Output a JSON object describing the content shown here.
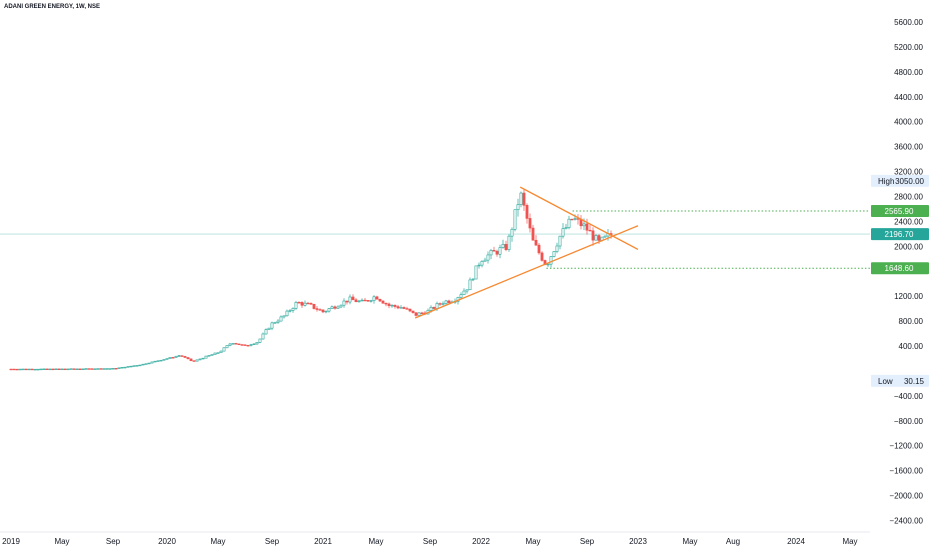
{
  "title": "ADANI GREEN ENERGY, 1W, NSE",
  "colors": {
    "up": "#26a69a",
    "down": "#ef5350",
    "trendline": "#f7882f",
    "level": "#4caf50",
    "price_tag": "#26a69a",
    "level_tag": "#4caf50",
    "hl_bg": "#e3effd"
  },
  "y_ticks": [
    "5600.00",
    "5200.00",
    "4800.00",
    "4400.00",
    "4000.00",
    "3600.00",
    "3200.00",
    "2800.00",
    "2400.00",
    "2000.00",
    "1200.00",
    "800.00",
    "400.00",
    "-400.00",
    "-800.00",
    "-1200.00",
    "-1600.00",
    "-2000.00",
    "-2400.00"
  ],
  "x_ticks": [
    "2019",
    "May",
    "Sep",
    "2020",
    "May",
    "Sep",
    "2021",
    "May",
    "Sep",
    "2022",
    "May",
    "Sep",
    "2023",
    "May",
    "Aug",
    "2024",
    "May"
  ],
  "price_tags": {
    "level_high": "2565.90",
    "current": "2196.70",
    "level_low": "1648.60"
  },
  "high_low": {
    "high_label": "High",
    "high_value": "3050.00",
    "low_label": "Low",
    "low_value": "30.15"
  },
  "chart_data": {
    "type": "candlestick",
    "title": "ADANI GREEN ENERGY, 1W, NSE",
    "y_range": [
      -2500,
      5800
    ],
    "x_range": [
      "2019-01",
      "2024-06"
    ],
    "overall_high": 3050.0,
    "overall_low": 30.15,
    "last_price": 2196.7,
    "horizontal_levels": [
      2565.9,
      1648.6
    ],
    "trendlines": [
      {
        "name": "",
        "from": {
          "date": "2022-04",
          "price": 2950
        },
        "to": {
          "date": "2023-01",
          "price": 1950
        }
      },
      {
        "name": "",
        "from": {
          "date": "2021-08",
          "price": 850
        },
        "to": {
          "date": "2023-01",
          "price": 2330
        }
      }
    ],
    "weekly_close_path": [
      {
        "date": "2019-01",
        "close": 30
      },
      {
        "date": "2019-04",
        "close": 30
      },
      {
        "date": "2019-07",
        "close": 35
      },
      {
        "date": "2019-09",
        "close": 40
      },
      {
        "date": "2019-11",
        "close": 100
      },
      {
        "date": "2020-01",
        "close": 200
      },
      {
        "date": "2020-02",
        "close": 250
      },
      {
        "date": "2020-03",
        "close": 150
      },
      {
        "date": "2020-04",
        "close": 230
      },
      {
        "date": "2020-05",
        "close": 300
      },
      {
        "date": "2020-06",
        "close": 460
      },
      {
        "date": "2020-07",
        "close": 400
      },
      {
        "date": "2020-08",
        "close": 470
      },
      {
        "date": "2020-09",
        "close": 750
      },
      {
        "date": "2020-10",
        "close": 880
      },
      {
        "date": "2020-11",
        "close": 1100
      },
      {
        "date": "2020-12",
        "close": 1050
      },
      {
        "date": "2021-01",
        "close": 950
      },
      {
        "date": "2021-02",
        "close": 1050
      },
      {
        "date": "2021-03",
        "close": 1150
      },
      {
        "date": "2021-04",
        "close": 1100
      },
      {
        "date": "2021-05",
        "close": 1200
      },
      {
        "date": "2021-06",
        "close": 1050
      },
      {
        "date": "2021-07",
        "close": 1020
      },
      {
        "date": "2021-08",
        "close": 900
      },
      {
        "date": "2021-09",
        "close": 960
      },
      {
        "date": "2021-10",
        "close": 1100
      },
      {
        "date": "2021-11",
        "close": 1150
      },
      {
        "date": "2021-12",
        "close": 1350
      },
      {
        "date": "2022-01",
        "close": 1800
      },
      {
        "date": "2022-02",
        "close": 1900
      },
      {
        "date": "2022-03",
        "close": 2000
      },
      {
        "date": "2022-04",
        "close": 2850
      },
      {
        "date": "2022-05",
        "close": 2050
      },
      {
        "date": "2022-06",
        "close": 1700
      },
      {
        "date": "2022-07",
        "close": 2150
      },
      {
        "date": "2022-08",
        "close": 2450
      },
      {
        "date": "2022-09",
        "close": 2300
      },
      {
        "date": "2022-10",
        "close": 2050
      },
      {
        "date": "2022-11",
        "close": 2196.7
      }
    ]
  }
}
